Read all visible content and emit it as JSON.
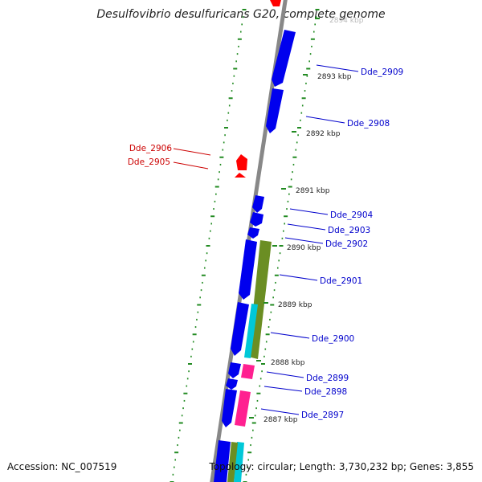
{
  "title": "Desulfovibrio desulfuricans G20, complete genome",
  "footer": {
    "accession": "Accession: NC_007519",
    "summary": "Topology: circular; Length: 3,730,232 bp; Genes: 3,855"
  },
  "colors": {
    "forward_strand_gene": "#0000ee",
    "reverse_strand_gene": "#ff0000",
    "olive_feature": "#6b8e23",
    "cyan_feature": "#00c8d8",
    "pink_feature": "#ff2090",
    "backbone": "#888888",
    "tick": "#228b22",
    "forward_label": "#0000cc",
    "reverse_label": "#cc0000"
  },
  "scale_labels": [
    "2894 kbp",
    "2893 kbp",
    "2892 kbp",
    "2891 kbp",
    "2890 kbp",
    "2889 kbp",
    "2888 kbp",
    "2887 kbp"
  ],
  "genes": [
    {
      "name": "Dde_2909",
      "strand": "forward"
    },
    {
      "name": "Dde_2908",
      "strand": "forward"
    },
    {
      "name": "Dde_2906",
      "strand": "reverse"
    },
    {
      "name": "Dde_2905",
      "strand": "reverse"
    },
    {
      "name": "Dde_2904",
      "strand": "forward"
    },
    {
      "name": "Dde_2903",
      "strand": "forward"
    },
    {
      "name": "Dde_2902",
      "strand": "forward"
    },
    {
      "name": "Dde_2901",
      "strand": "forward"
    },
    {
      "name": "Dde_2900",
      "strand": "forward"
    },
    {
      "name": "Dde_2899",
      "strand": "forward"
    },
    {
      "name": "Dde_2898",
      "strand": "forward"
    },
    {
      "name": "Dde_2897",
      "strand": "forward"
    }
  ]
}
